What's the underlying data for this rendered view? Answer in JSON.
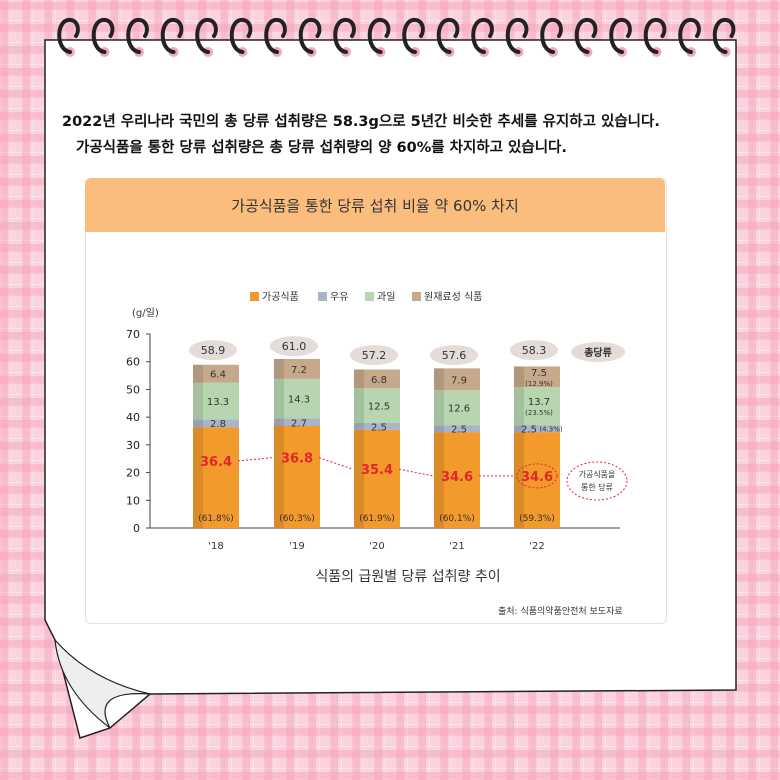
{
  "intro": {
    "line1": "2022년 우리나라 국민의 총 당류 섭취량은 58.3g으로 5년간 비슷한 추세를 유지하고 있습니다.",
    "line2": "가공식품을 통한 당류 섭취량은 총 당류  섭취량의 양 60%를 차지하고 있습니다."
  },
  "banner": "가공식품을 통한 당류 섭취 비율 약 60% 차지",
  "source": "출처: 식품의약품안전처 보도자료",
  "chart_data": {
    "type": "bar",
    "stacked": true,
    "title": "식품의 급원별 당류 섭취량 추이",
    "ylabel": "(g/일)",
    "ylim": [
      0,
      70
    ],
    "yticks": [
      0,
      10,
      20,
      30,
      40,
      50,
      60,
      70
    ],
    "categories": [
      "'18",
      "'19",
      "'20",
      "'21",
      "'22"
    ],
    "legend_position": "top",
    "series": [
      {
        "name": "가공식품",
        "color": "#f39a2c",
        "values": [
          36.4,
          36.8,
          35.4,
          34.6,
          34.6
        ]
      },
      {
        "name": "우유",
        "color": "#a9b4c8",
        "values": [
          2.8,
          2.7,
          2.5,
          2.5,
          2.5
        ]
      },
      {
        "name": "과일",
        "color": "#b7d6b0",
        "values": [
          13.3,
          14.3,
          12.5,
          12.6,
          13.7
        ]
      },
      {
        "name": "원재료성 식품",
        "color": "#c6a98a",
        "values": [
          6.4,
          7.2,
          6.8,
          7.9,
          7.5
        ]
      }
    ],
    "processed_share_labels": [
      "(61.8%)",
      "(60.3%)",
      "(61.9%)",
      "(60.1%)",
      "(59.3%)"
    ],
    "extra_share_labels_2022": {
      "원재료성 식품": "(12.9%)",
      "과일": "(23.5%)",
      "우유": "(4.3%)"
    },
    "totals": {
      "name": "총당류",
      "values": [
        58.9,
        61.0,
        57.2,
        57.6,
        58.3
      ]
    },
    "annotation": "가공식품을 통한 당류",
    "processed_color": "#e3262b"
  }
}
